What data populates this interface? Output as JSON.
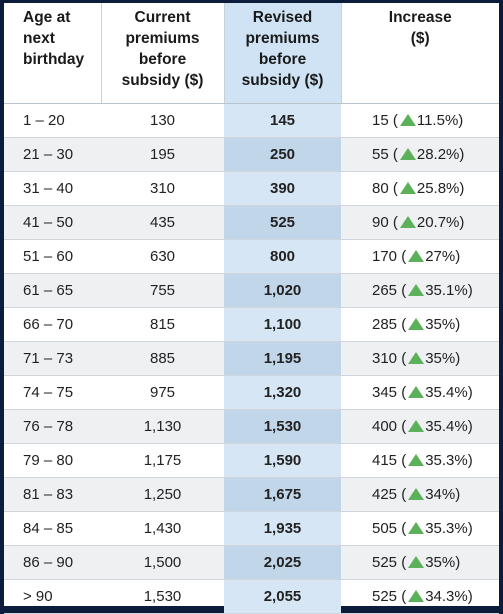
{
  "headers": {
    "age": [
      "Age at",
      "next",
      "birthday"
    ],
    "current": [
      "Current",
      "premiums",
      "before",
      "subsidy ($)"
    ],
    "revised": [
      "Revised",
      "premiums",
      "before",
      "subsidy ($)"
    ],
    "increase": [
      "Increase",
      "($)"
    ]
  },
  "rows": [
    {
      "age": "1 – 20",
      "current": "130",
      "revised": "145",
      "inc_amount": "15",
      "inc_pct": "11.5%"
    },
    {
      "age": "21 – 30",
      "current": "195",
      "revised": "250",
      "inc_amount": "55",
      "inc_pct": "28.2%"
    },
    {
      "age": "31 – 40",
      "current": "310",
      "revised": "390",
      "inc_amount": "80",
      "inc_pct": "25.8%"
    },
    {
      "age": "41 – 50",
      "current": "435",
      "revised": "525",
      "inc_amount": "90",
      "inc_pct": "20.7%"
    },
    {
      "age": "51 – 60",
      "current": "630",
      "revised": "800",
      "inc_amount": "170",
      "inc_pct": "27%"
    },
    {
      "age": "61 – 65",
      "current": "755",
      "revised": "1,020",
      "inc_amount": "265",
      "inc_pct": "35.1%"
    },
    {
      "age": "66 – 70",
      "current": "815",
      "revised": "1,100",
      "inc_amount": "285",
      "inc_pct": "35%"
    },
    {
      "age": "71 – 73",
      "current": "885",
      "revised": "1,195",
      "inc_amount": "310",
      "inc_pct": "35%"
    },
    {
      "age": "74 – 75",
      "current": "975",
      "revised": "1,320",
      "inc_amount": "345",
      "inc_pct": "35.4%"
    },
    {
      "age": "76 – 78",
      "current": "1,130",
      "revised": "1,530",
      "inc_amount": "400",
      "inc_pct": "35.4%"
    },
    {
      "age": "79 – 80",
      "current": "1,175",
      "revised": "1,590",
      "inc_amount": "415",
      "inc_pct": "35.3%"
    },
    {
      "age": "81 – 83",
      "current": "1,250",
      "revised": "1,675",
      "inc_amount": "425",
      "inc_pct": "34%"
    },
    {
      "age": "84 – 85",
      "current": "1,430",
      "revised": "1,935",
      "inc_amount": "505",
      "inc_pct": "35.3%"
    },
    {
      "age": "86 – 90",
      "current": "1,500",
      "revised": "2,025",
      "inc_amount": "525",
      "inc_pct": "35%"
    },
    {
      "age": "> 90",
      "current": "1,530",
      "revised": "2,055",
      "inc_amount": "525",
      "inc_pct": "34.3%"
    }
  ],
  "colors": {
    "revised_column": "#d6e6f4",
    "increase_triangle": "#5cb05a",
    "border": "#0b1d3a"
  },
  "icons": {
    "increase": "triangle-up-icon"
  }
}
